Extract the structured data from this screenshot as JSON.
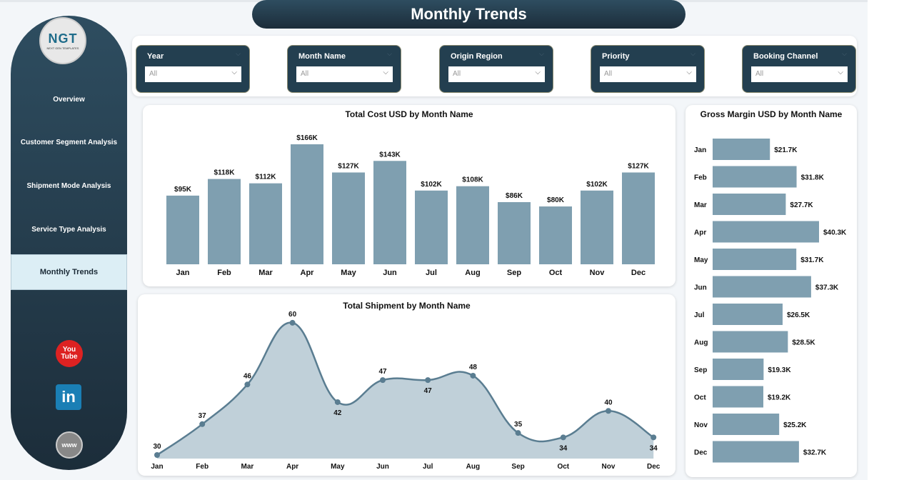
{
  "header": {
    "title": "Monthly Trends"
  },
  "logo": {
    "text": "NGT",
    "subtitle": "NEXT GEN TEMPLATES"
  },
  "sidebar": {
    "items": [
      {
        "label": "Overview"
      },
      {
        "label": "Customer Segment Analysis"
      },
      {
        "label": "Shipment Mode Analysis"
      },
      {
        "label": "Service Type Analysis"
      },
      {
        "label": "Monthly Trends",
        "active": true
      }
    ],
    "social": [
      {
        "icon": "youtube-icon",
        "label": "You Tube"
      },
      {
        "icon": "linkedin-icon",
        "label": "in"
      },
      {
        "icon": "globe-icon",
        "label": "www"
      }
    ]
  },
  "filters": [
    {
      "label": "Year",
      "value": "All"
    },
    {
      "label": "Month Name",
      "value": "All"
    },
    {
      "label": "Origin Region",
      "value": "All"
    },
    {
      "label": "Priority",
      "value": "All"
    },
    {
      "label": "Booking Channel",
      "value": "All"
    }
  ],
  "colors": {
    "bar": "#7f9fb0",
    "area": "#c0d0d9",
    "line": "#5a7d91",
    "dark": "#233f50"
  },
  "chart_data": [
    {
      "type": "bar",
      "title": "Total Cost USD by Month Name",
      "categories": [
        "Jan",
        "Feb",
        "Mar",
        "Apr",
        "May",
        "Jun",
        "Jul",
        "Aug",
        "Sep",
        "Oct",
        "Nov",
        "Dec"
      ],
      "values": [
        95,
        118,
        112,
        166,
        127,
        143,
        102,
        108,
        86,
        80,
        102,
        127
      ],
      "labels": [
        "$95K",
        "$118K",
        "$112K",
        "$166K",
        "$127K",
        "$143K",
        "$102K",
        "$108K",
        "$86K",
        "$80K",
        "$102K",
        "$127K"
      ],
      "unit": "K USD"
    },
    {
      "type": "area",
      "title": "Total Shipment by Month Name",
      "categories": [
        "Jan",
        "Feb",
        "Mar",
        "Apr",
        "May",
        "Jun",
        "Jul",
        "Aug",
        "Sep",
        "Oct",
        "Nov",
        "Dec"
      ],
      "values": [
        30,
        37,
        46,
        60,
        42,
        47,
        47,
        48,
        35,
        34,
        40,
        34
      ]
    },
    {
      "type": "bar",
      "orientation": "horizontal",
      "title": "Gross Margin USD by Month Name",
      "categories": [
        "Jan",
        "Feb",
        "Mar",
        "Apr",
        "May",
        "Jun",
        "Jul",
        "Aug",
        "Sep",
        "Oct",
        "Nov",
        "Dec"
      ],
      "values": [
        21.7,
        31.8,
        27.7,
        40.3,
        31.7,
        37.3,
        26.5,
        28.5,
        19.3,
        19.2,
        25.2,
        32.7
      ],
      "labels": [
        "$21.7K",
        "$31.8K",
        "$27.7K",
        "$40.3K",
        "$31.7K",
        "$37.3K",
        "$26.5K",
        "$28.5K",
        "$19.3K",
        "$19.2K",
        "$25.2K",
        "$32.7K"
      ],
      "unit": "K USD"
    }
  ]
}
